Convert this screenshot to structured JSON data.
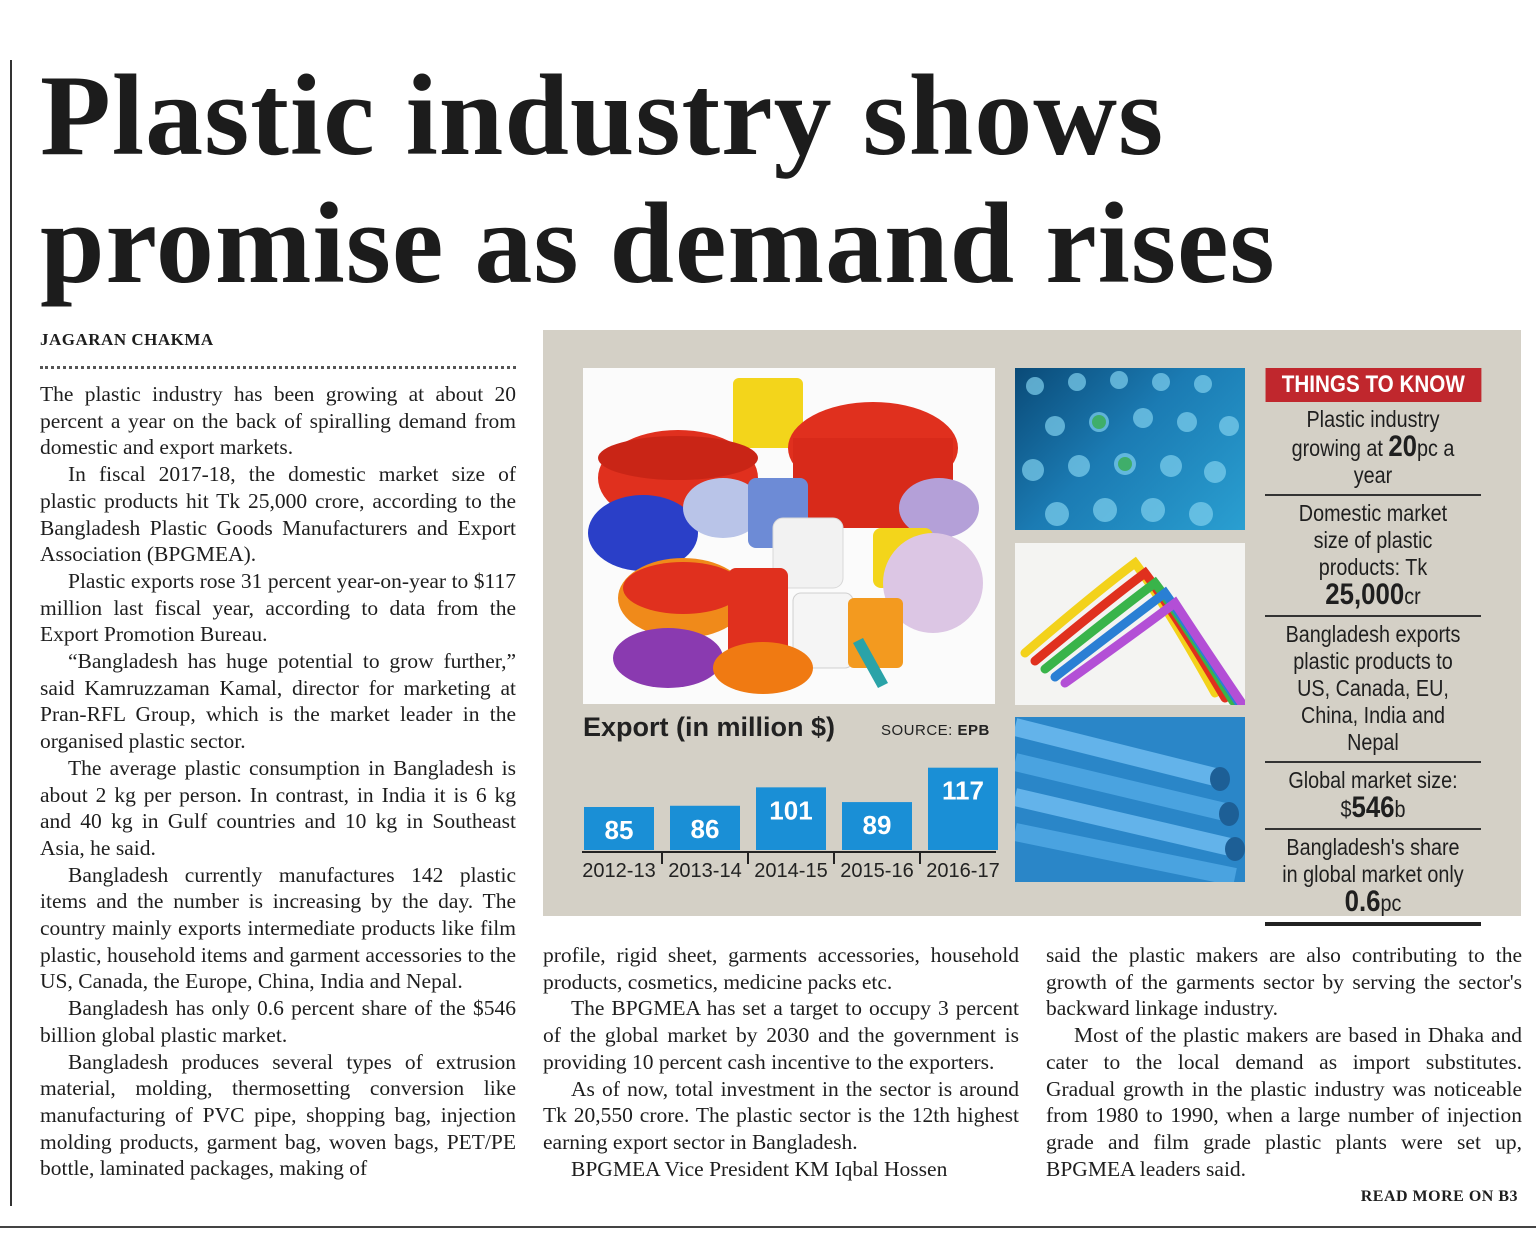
{
  "article": {
    "headline_line1": "Plastic industry shows",
    "headline_line2": "promise as demand rises",
    "byline": "JAGARAN CHAKMA",
    "col1": [
      "The plastic industry has been growing at about 20 percent a year on the back of spiralling demand from domestic and export markets.",
      "In fiscal 2017-18, the domestic market size of plastic products hit Tk 25,000 crore, according to the Bangladesh Plastic Goods Manufacturers and Export Association (BPGMEA).",
      "Plastic exports rose 31 percent year-on-year to $117 million last fiscal year, according to data from the Export Promotion Bureau.",
      "“Bangladesh has huge potential to grow further,” said Kamruzzaman Kamal, director for marketing at Pran-RFL Group, which is the market leader in the organised plastic sector.",
      "The average plastic consumption in Bangladesh is about 2 kg per person. In contrast, in India it is 6 kg and 40 kg in Gulf countries and 10 kg in Southeast Asia, he said.",
      "Bangladesh currently manufactures 142 plastic items and the number is increasing by the day. The country mainly exports intermediate products like film plastic, household items and garment accessories to the US, Canada, the Europe, China, India and Nepal.",
      "Bangladesh has only 0.6 percent share of the $546 billion global plastic market.",
      "Bangladesh produces several types of extrusion material, molding, thermosetting conversion like manufacturing of PVC pipe, shopping bag, injection molding products, garment bag, woven bags, PET/PE bottle, laminated packages, making of"
    ],
    "col2": [
      "profile, rigid sheet, garments accessories, household products, cosmetics, medicine packs etc.",
      "The BPGMEA has set a target to occupy 3 percent of the global market by 2030 and the government is providing 10 percent cash incentive to the exporters.",
      "As of now, total investment in the sector is around Tk 20,550 crore. The plastic sector is the 12th highest earning export sector in Bangladesh.",
      "BPGMEA Vice President KM Iqbal Hossen"
    ],
    "col3": [
      "said the plastic makers are also contributing to the growth of the garments sector by serving the sector's backward linkage industry.",
      "Most of the plastic makers are based in Dhaka and cater to the local demand as import substitutes. Gradual growth in the plastic industry was noticeable from 1980 to 1990, when a large number of injection grade and film grade plastic plants were set up, BPGMEA leaders said."
    ],
    "read_more": "READ MORE ON B3"
  },
  "graphic": {
    "source_label": "SOURCE:",
    "source_name": "EPB",
    "things_to_know": {
      "heading": "THINGS TO KNOW",
      "items": [
        {
          "pre": "Plastic industry growing at ",
          "num": "20",
          "unit": "pc a year"
        },
        {
          "pre": "Domestic market size of plastic products: Tk ",
          "num": "25,000",
          "unit": "cr"
        },
        {
          "pre": "Bangladesh exports plastic products to US, Canada, EU, China, India and Nepal",
          "num": "",
          "unit": ""
        },
        {
          "pre": "Global market size: $",
          "num": "546",
          "unit": "b"
        },
        {
          "pre": "Bangladesh's share in global market only ",
          "num": "0.6",
          "unit": "pc"
        }
      ]
    },
    "colors": {
      "bar": "#1a8fd6",
      "headband": "#c0272d",
      "panel": "#d4d0c6"
    }
  },
  "chart_data": {
    "type": "bar",
    "title": "Export (in million $)",
    "categories": [
      "2012-13",
      "2013-14",
      "2014-15",
      "2015-16",
      "2016-17"
    ],
    "values": [
      85,
      86,
      101,
      89,
      117
    ],
    "ylabel": "",
    "xlabel": "",
    "data_labels": true,
    "grid": false
  }
}
